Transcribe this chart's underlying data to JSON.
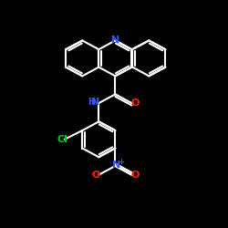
{
  "background_color": "#000000",
  "bond_color": "#ffffff",
  "bond_width": 1.5,
  "figsize": [
    2.5,
    2.5
  ],
  "dpi": 100,
  "xlim": [
    0.05,
    0.95
  ],
  "ylim": [
    0.05,
    0.95
  ]
}
